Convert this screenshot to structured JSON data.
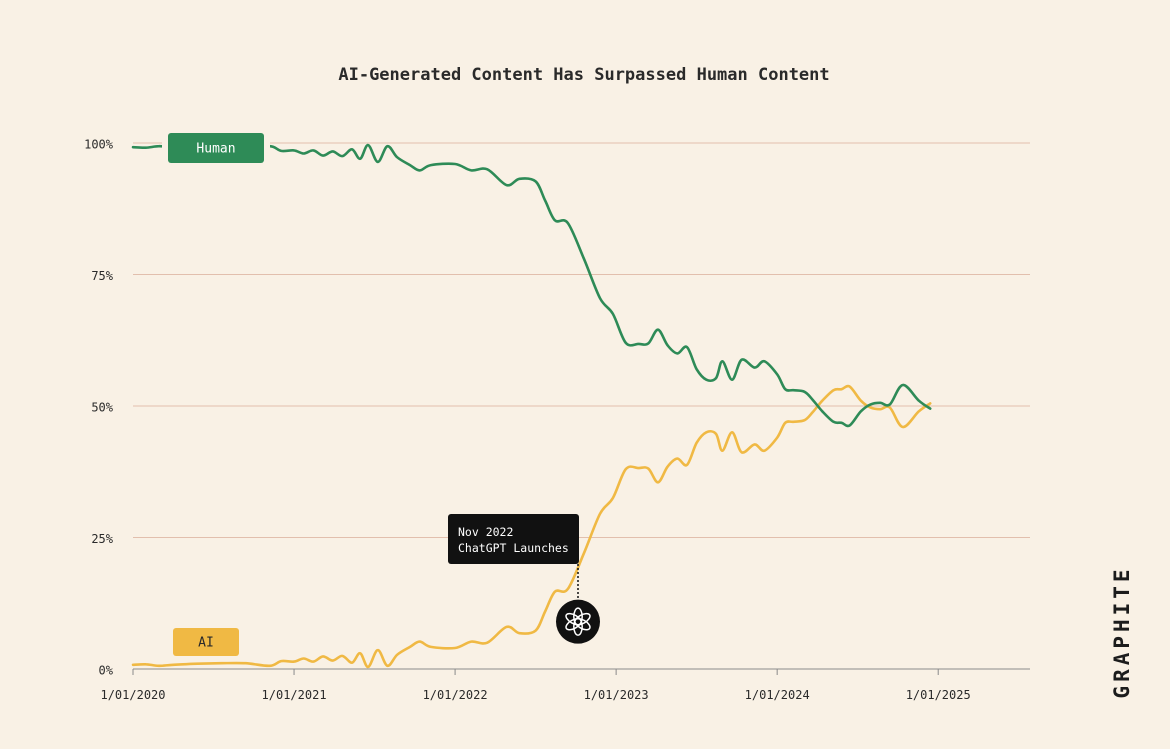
{
  "chart_data": {
    "type": "line",
    "title": "AI-Generated Content Has Surpassed Human Content",
    "xlabel": "",
    "ylabel": "",
    "x_ticks": [
      "1/01/2020",
      "1/01/2021",
      "1/01/2022",
      "1/01/2023",
      "1/01/2024",
      "1/01/2025"
    ],
    "y_ticks": [
      "0%",
      "25%",
      "50%",
      "75%",
      "100%"
    ],
    "ylim": [
      0,
      100
    ],
    "xlim": [
      2020.0,
      2025.57
    ],
    "grid": true,
    "series": [
      {
        "name": "Human",
        "color": "#2e8b57",
        "points": [
          [
            2020.0,
            99.2
          ],
          [
            2020.08,
            99.1
          ],
          [
            2020.16,
            99.4
          ],
          [
            2020.25,
            99.2
          ],
          [
            2020.4,
            99.0
          ],
          [
            2020.55,
            98.9
          ],
          [
            2020.7,
            98.9
          ],
          [
            2020.85,
            99.4
          ],
          [
            2020.92,
            98.5
          ],
          [
            2021.0,
            98.6
          ],
          [
            2021.06,
            98.0
          ],
          [
            2021.12,
            98.6
          ],
          [
            2021.18,
            97.6
          ],
          [
            2021.24,
            98.4
          ],
          [
            2021.3,
            97.5
          ],
          [
            2021.36,
            98.8
          ],
          [
            2021.41,
            97.0
          ],
          [
            2021.46,
            99.6
          ],
          [
            2021.52,
            96.4
          ],
          [
            2021.58,
            99.4
          ],
          [
            2021.64,
            97.3
          ],
          [
            2021.72,
            95.8
          ],
          [
            2021.78,
            94.8
          ],
          [
            2021.85,
            95.8
          ],
          [
            2022.0,
            96.0
          ],
          [
            2022.1,
            94.8
          ],
          [
            2022.2,
            95.0
          ],
          [
            2022.32,
            92.0
          ],
          [
            2022.4,
            93.2
          ],
          [
            2022.5,
            92.7
          ],
          [
            2022.56,
            89.0
          ],
          [
            2022.62,
            85.3
          ],
          [
            2022.7,
            84.8
          ],
          [
            2022.8,
            78.0
          ],
          [
            2022.9,
            70.5
          ],
          [
            2022.98,
            67.5
          ],
          [
            2023.06,
            62.0
          ],
          [
            2023.14,
            61.8
          ],
          [
            2023.2,
            61.9
          ],
          [
            2023.26,
            64.5
          ],
          [
            2023.32,
            61.5
          ],
          [
            2023.38,
            60.0
          ],
          [
            2023.44,
            61.2
          ],
          [
            2023.5,
            57.0
          ],
          [
            2023.56,
            55.0
          ],
          [
            2023.62,
            55.3
          ],
          [
            2023.66,
            58.5
          ],
          [
            2023.72,
            55.0
          ],
          [
            2023.78,
            58.8
          ],
          [
            2023.86,
            57.3
          ],
          [
            2023.92,
            58.5
          ],
          [
            2024.0,
            56.0
          ],
          [
            2024.05,
            53.2
          ],
          [
            2024.1,
            53.0
          ],
          [
            2024.17,
            52.7
          ],
          [
            2024.22,
            51.2
          ],
          [
            2024.28,
            49.0
          ],
          [
            2024.35,
            47.0
          ],
          [
            2024.4,
            46.8
          ],
          [
            2024.45,
            46.3
          ],
          [
            2024.52,
            49.0
          ],
          [
            2024.58,
            50.3
          ],
          [
            2024.64,
            50.6
          ],
          [
            2024.7,
            50.3
          ],
          [
            2024.78,
            54.0
          ],
          [
            2024.88,
            51.0
          ],
          [
            2024.95,
            49.5
          ]
        ]
      },
      {
        "name": "AI",
        "color": "#f0b944",
        "points": [
          [
            2020.0,
            0.8
          ],
          [
            2020.08,
            0.9
          ],
          [
            2020.16,
            0.6
          ],
          [
            2020.25,
            0.8
          ],
          [
            2020.4,
            1.0
          ],
          [
            2020.55,
            1.1
          ],
          [
            2020.7,
            1.1
          ],
          [
            2020.85,
            0.6
          ],
          [
            2020.92,
            1.5
          ],
          [
            2021.0,
            1.4
          ],
          [
            2021.06,
            2.0
          ],
          [
            2021.12,
            1.4
          ],
          [
            2021.18,
            2.4
          ],
          [
            2021.24,
            1.6
          ],
          [
            2021.3,
            2.5
          ],
          [
            2021.36,
            1.2
          ],
          [
            2021.41,
            3.0
          ],
          [
            2021.46,
            0.4
          ],
          [
            2021.52,
            3.6
          ],
          [
            2021.58,
            0.6
          ],
          [
            2021.64,
            2.7
          ],
          [
            2021.72,
            4.2
          ],
          [
            2021.78,
            5.2
          ],
          [
            2021.85,
            4.2
          ],
          [
            2022.0,
            4.0
          ],
          [
            2022.1,
            5.2
          ],
          [
            2022.2,
            5.0
          ],
          [
            2022.32,
            8.0
          ],
          [
            2022.4,
            6.8
          ],
          [
            2022.5,
            7.3
          ],
          [
            2022.56,
            11.0
          ],
          [
            2022.62,
            14.7
          ],
          [
            2022.7,
            15.2
          ],
          [
            2022.8,
            22.0
          ],
          [
            2022.9,
            29.5
          ],
          [
            2022.98,
            32.5
          ],
          [
            2023.06,
            38.0
          ],
          [
            2023.14,
            38.2
          ],
          [
            2023.2,
            38.1
          ],
          [
            2023.26,
            35.5
          ],
          [
            2023.32,
            38.5
          ],
          [
            2023.38,
            40.0
          ],
          [
            2023.44,
            38.8
          ],
          [
            2023.5,
            43.0
          ],
          [
            2023.56,
            45.0
          ],
          [
            2023.62,
            44.7
          ],
          [
            2023.66,
            41.5
          ],
          [
            2023.72,
            45.0
          ],
          [
            2023.78,
            41.2
          ],
          [
            2023.86,
            42.7
          ],
          [
            2023.92,
            41.5
          ],
          [
            2024.0,
            44.0
          ],
          [
            2024.05,
            46.8
          ],
          [
            2024.1,
            47.0
          ],
          [
            2024.17,
            47.3
          ],
          [
            2024.22,
            48.8
          ],
          [
            2024.28,
            51.0
          ],
          [
            2024.35,
            53.0
          ],
          [
            2024.4,
            53.2
          ],
          [
            2024.45,
            53.7
          ],
          [
            2024.52,
            51.0
          ],
          [
            2024.58,
            49.7
          ],
          [
            2024.64,
            49.4
          ],
          [
            2024.7,
            49.7
          ],
          [
            2024.78,
            46.0
          ],
          [
            2024.88,
            49.0
          ],
          [
            2024.95,
            50.5
          ]
        ]
      }
    ],
    "annotation": {
      "x": 2022.56,
      "y": 9.0,
      "lines": [
        "Nov 2022",
        "ChatGPT Launches"
      ],
      "icon": "openai-logo-icon"
    }
  },
  "brand": {
    "name": "GRAPHITE",
    "icon": "graphite-wordmark"
  },
  "colors": {
    "background": "#f9f1e5",
    "grid": "#e2bfad",
    "human": "#2e8b57",
    "ai": "#f0b944",
    "annotation_bg": "#111111"
  }
}
